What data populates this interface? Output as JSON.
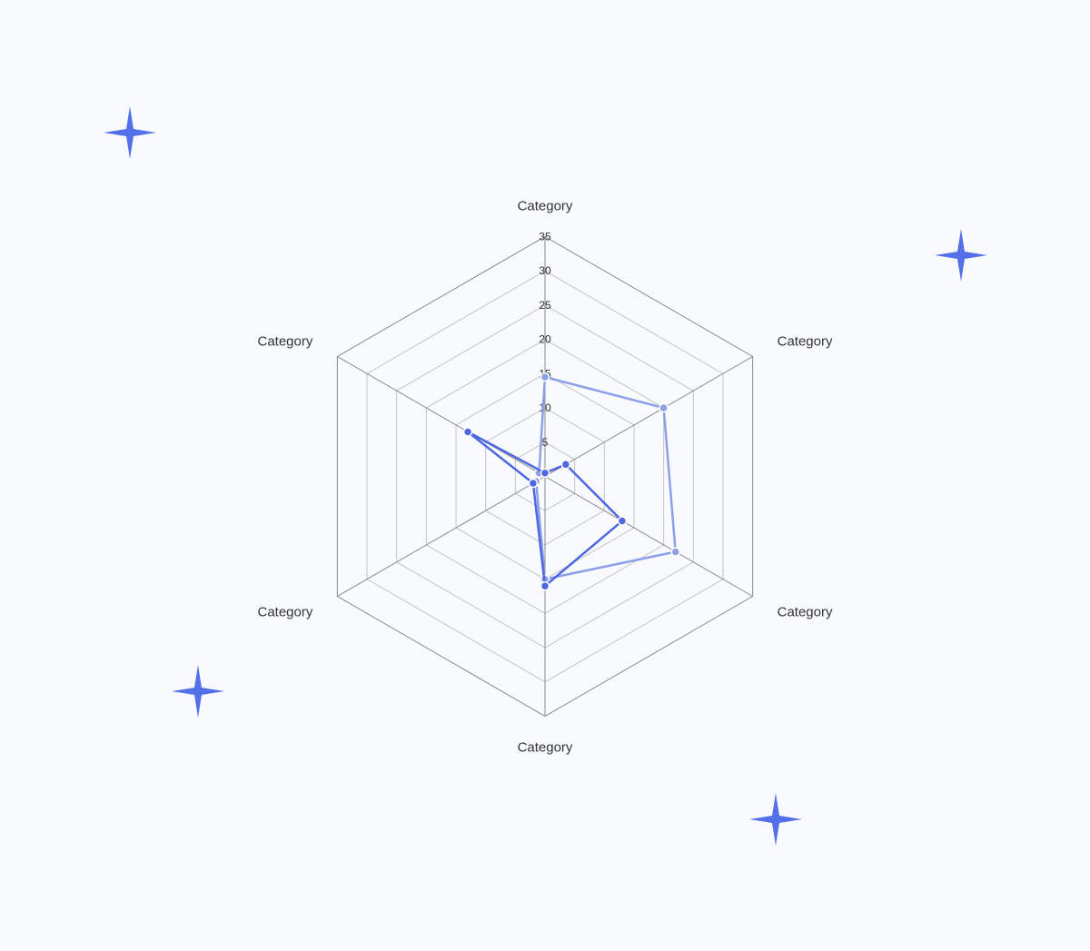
{
  "colors": {
    "background": "#f8fafd",
    "grid": "#c4c4c4",
    "axis": "#8a8a8a",
    "series_primary": "#4f67e0",
    "series_secondary": "#8e9fe9",
    "sparkle": "#5470e8"
  },
  "decorations": {
    "sparkle_icon": "four-point-star-icon",
    "count": 5
  },
  "chart_data": {
    "type": "radar",
    "title": "",
    "axes": [
      "Category",
      "Category",
      "Category",
      "Category",
      "Category",
      "Category"
    ],
    "rlim": [
      0,
      35
    ],
    "ticks": [
      "5",
      "10",
      "15",
      "20",
      "25",
      "30",
      "35"
    ],
    "grid": true,
    "legend": "none",
    "series": [
      {
        "color": "#8e9fe9",
        "values": [
          14.5,
          20,
          22,
          15,
          1.5,
          1
        ]
      },
      {
        "color": "#4f67e0",
        "values": [
          0.5,
          3.5,
          13,
          16,
          2,
          13
        ]
      }
    ]
  }
}
